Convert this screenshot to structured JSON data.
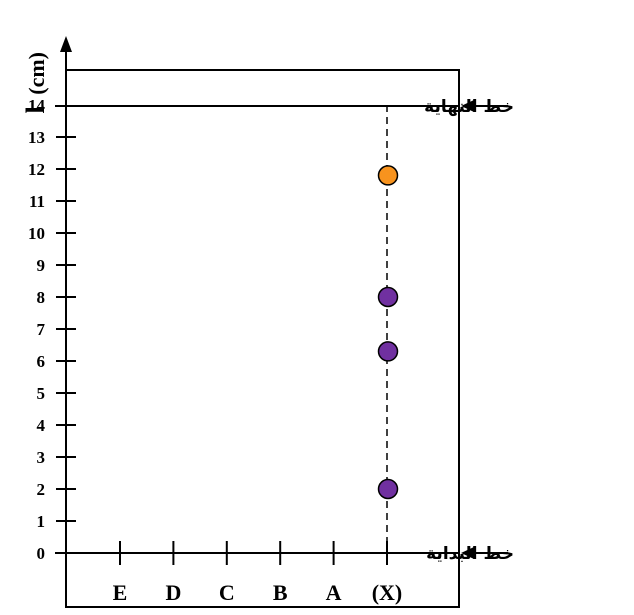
{
  "y_axis": {
    "label_number": "l",
    "label_unit": "(cm)",
    "ticks": [
      "0",
      "1",
      "2",
      "3",
      "4",
      "5",
      "6",
      "7",
      "8",
      "9",
      "10",
      "11",
      "12",
      "13",
      "14"
    ]
  },
  "lanes": [
    {
      "label": "E"
    },
    {
      "label": "D"
    },
    {
      "label": "C"
    },
    {
      "label": "B"
    },
    {
      "label": "A"
    },
    {
      "label": "(X)"
    }
  ],
  "start_line": {
    "label": "خط البداية",
    "value": 0
  },
  "finish_line": {
    "label": "خط النهاية",
    "value": 14
  },
  "spots": [
    {
      "lane": "(X)",
      "value": 11.8,
      "color": "#F7931E"
    },
    {
      "lane": "(X)",
      "value": 8.0,
      "color": "#7030A0"
    },
    {
      "lane": "(X)",
      "value": 6.3,
      "color": "#7030A0"
    },
    {
      "lane": "(X)",
      "value": 2.0,
      "color": "#7030A0"
    }
  ],
  "colors": {
    "line": "#000000",
    "spot_outline": "#000000"
  }
}
